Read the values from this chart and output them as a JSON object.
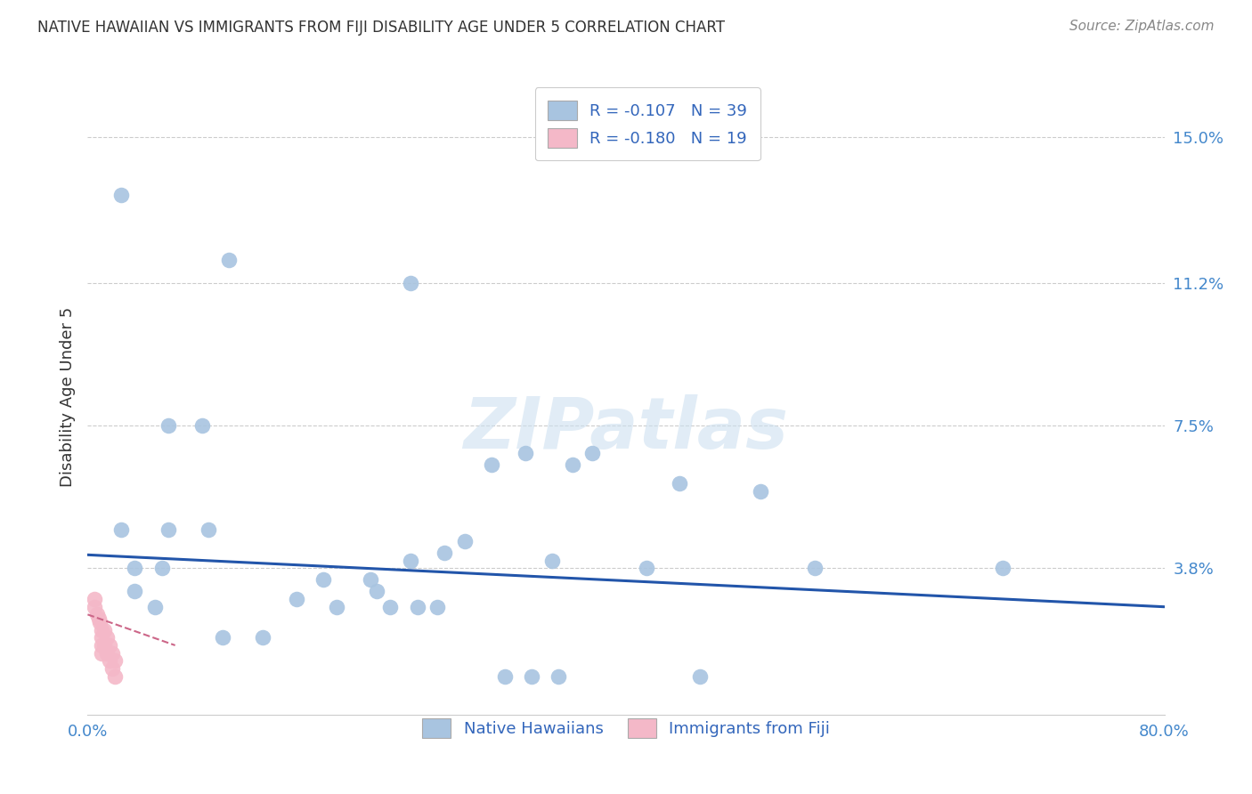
{
  "title": "NATIVE HAWAIIAN VS IMMIGRANTS FROM FIJI DISABILITY AGE UNDER 5 CORRELATION CHART",
  "source": "Source: ZipAtlas.com",
  "ylabel": "Disability Age Under 5",
  "xlim": [
    0.0,
    0.8
  ],
  "ylim": [
    0.0,
    0.165
  ],
  "xticks": [
    0.0,
    0.1,
    0.2,
    0.3,
    0.4,
    0.5,
    0.6,
    0.7,
    0.8
  ],
  "xtick_labels": [
    "0.0%",
    "",
    "",
    "",
    "",
    "",
    "",
    "",
    "80.0%"
  ],
  "ytick_positions": [
    0.038,
    0.075,
    0.112,
    0.15
  ],
  "ytick_labels": [
    "3.8%",
    "7.5%",
    "11.2%",
    "15.0%"
  ],
  "legend_r1": "R = -0.107",
  "legend_n1": "N = 39",
  "legend_r2": "R = -0.180",
  "legend_n2": "N = 19",
  "watermark": "ZIPatlas",
  "blue_color": "#a8c4e0",
  "pink_color": "#f4b8c8",
  "line_blue": "#2255aa",
  "line_pink": "#cc6688",
  "native_hawaiians_x": [
    0.025,
    0.06,
    0.105,
    0.24,
    0.025,
    0.085,
    0.035,
    0.055,
    0.06,
    0.09,
    0.13,
    0.175,
    0.21,
    0.215,
    0.24,
    0.265,
    0.28,
    0.3,
    0.325,
    0.345,
    0.36,
    0.375,
    0.415,
    0.44,
    0.5,
    0.54,
    0.68,
    0.035,
    0.05,
    0.1,
    0.155,
    0.185,
    0.225,
    0.245,
    0.26,
    0.31,
    0.33,
    0.35,
    0.455
  ],
  "native_hawaiians_y": [
    0.135,
    0.075,
    0.118,
    0.112,
    0.048,
    0.075,
    0.038,
    0.038,
    0.048,
    0.048,
    0.02,
    0.035,
    0.035,
    0.032,
    0.04,
    0.042,
    0.045,
    0.065,
    0.068,
    0.04,
    0.065,
    0.068,
    0.038,
    0.06,
    0.058,
    0.038,
    0.038,
    0.032,
    0.028,
    0.02,
    0.03,
    0.028,
    0.028,
    0.028,
    0.028,
    0.01,
    0.01,
    0.01,
    0.01
  ],
  "fiji_x": [
    0.005,
    0.005,
    0.007,
    0.008,
    0.009,
    0.01,
    0.01,
    0.01,
    0.01,
    0.012,
    0.012,
    0.014,
    0.014,
    0.016,
    0.016,
    0.018,
    0.018,
    0.02,
    0.02
  ],
  "fiji_y": [
    0.03,
    0.028,
    0.026,
    0.025,
    0.024,
    0.022,
    0.02,
    0.018,
    0.016,
    0.022,
    0.018,
    0.02,
    0.016,
    0.018,
    0.014,
    0.016,
    0.012,
    0.014,
    0.01
  ],
  "blue_line_x": [
    0.0,
    0.8
  ],
  "blue_line_y": [
    0.0415,
    0.028
  ],
  "pink_line_x": [
    0.0,
    0.065
  ],
  "pink_line_y": [
    0.026,
    0.018
  ],
  "grid_color": "#cccccc",
  "bg_color": "#ffffff",
  "tick_color": "#4488cc",
  "text_color": "#333333",
  "source_color": "#888888"
}
